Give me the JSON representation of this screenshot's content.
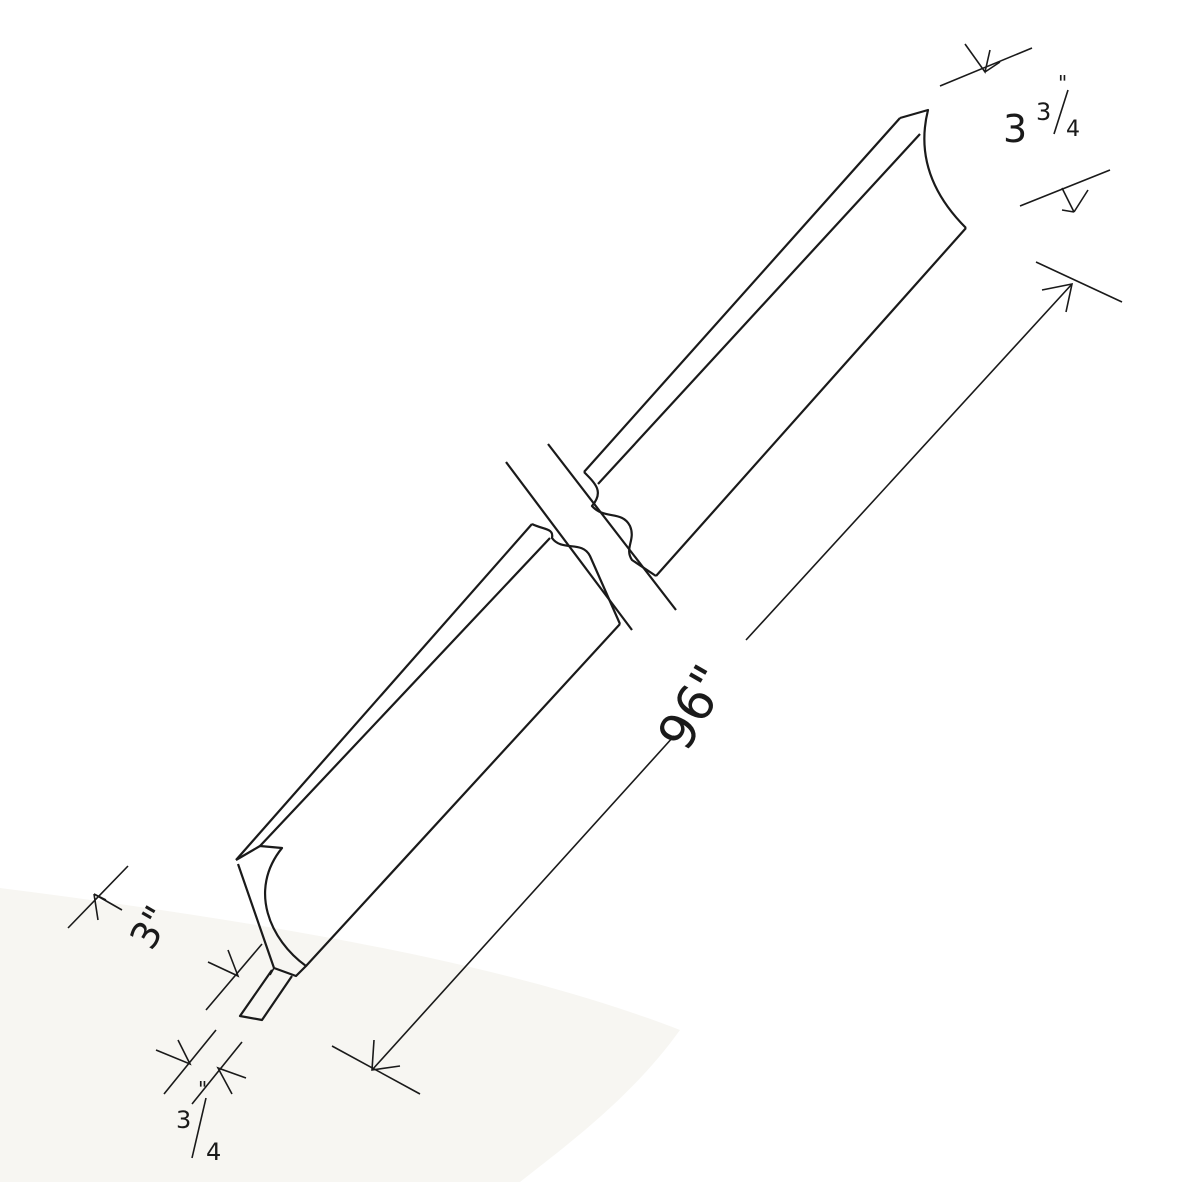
{
  "colors": {
    "ink": "#1a1a1a",
    "background": "#ffffff",
    "floor": "#f7f6f2"
  },
  "dimensions": {
    "height_whole": "3",
    "height_frac_num": "3",
    "height_frac_den": "4",
    "length": "96\"",
    "depth": "3\"",
    "thickness_num": "3",
    "thickness_den": "4",
    "inch_mark": "\""
  }
}
